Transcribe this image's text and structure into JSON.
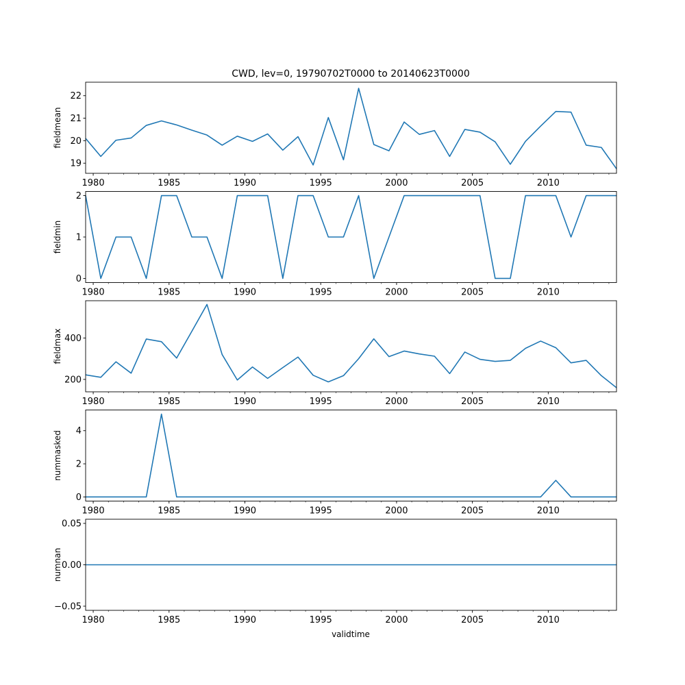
{
  "figure": {
    "title": "CWD, lev=0, 19790702T0000 to 20140623T0000",
    "xlabel": "validtime",
    "line_color": "#1f77b4"
  },
  "chart_data": [
    {
      "type": "line",
      "ylabel": "fieldmean",
      "x": [
        1979.5,
        1980.5,
        1981.5,
        1982.5,
        1983.5,
        1984.5,
        1985.5,
        1986.5,
        1987.5,
        1988.5,
        1989.5,
        1990.5,
        1991.5,
        1992.5,
        1993.5,
        1994.5,
        1995.5,
        1996.5,
        1997.5,
        1998.5,
        1999.5,
        2000.5,
        2001.5,
        2002.5,
        2003.5,
        2004.5,
        2005.5,
        2006.5,
        2007.5,
        2008.5,
        2009.5,
        2010.5,
        2011.5,
        2012.5,
        2013.5,
        2014.5
      ],
      "y": [
        20.1,
        19.3,
        20.02,
        20.12,
        20.68,
        20.88,
        20.7,
        20.47,
        20.25,
        19.8,
        20.2,
        19.97,
        20.3,
        19.58,
        20.18,
        18.92,
        21.03,
        19.15,
        22.33,
        19.83,
        19.55,
        20.83,
        20.28,
        20.45,
        19.3,
        20.5,
        20.38,
        19.95,
        18.95,
        19.97,
        20.65,
        21.3,
        21.27,
        19.8,
        19.7,
        18.75
      ],
      "ylim": [
        18.55,
        22.6
      ],
      "yticks": [
        19,
        20,
        21,
        22
      ],
      "ytick_labels": [
        "19",
        "20",
        "21",
        "22"
      ]
    },
    {
      "type": "line",
      "ylabel": "fieldmin",
      "x": [
        1979.5,
        1980.5,
        1981.5,
        1982.5,
        1983.5,
        1984.5,
        1985.5,
        1986.5,
        1987.5,
        1988.5,
        1989.5,
        1990.5,
        1991.5,
        1992.5,
        1993.5,
        1994.5,
        1995.5,
        1996.5,
        1997.5,
        1998.5,
        1999.5,
        2000.5,
        2001.5,
        2002.5,
        2003.5,
        2004.5,
        2005.5,
        2006.5,
        2007.5,
        2008.5,
        2009.5,
        2010.5,
        2011.5,
        2012.5,
        2013.5,
        2014.5
      ],
      "y": [
        2,
        0,
        1,
        1,
        0,
        2,
        2,
        1,
        1,
        0,
        2,
        2,
        2,
        0,
        2,
        2,
        1,
        1,
        2,
        0,
        1,
        2,
        2,
        2,
        2,
        2,
        2,
        0,
        0,
        2,
        2,
        2,
        1,
        2,
        2,
        2
      ],
      "ylim": [
        -0.1,
        2.1
      ],
      "yticks": [
        0,
        1,
        2
      ],
      "ytick_labels": [
        "0",
        "1",
        "2"
      ]
    },
    {
      "type": "line",
      "ylabel": "fieldmax",
      "x": [
        1979.5,
        1980.5,
        1981.5,
        1982.5,
        1983.5,
        1984.5,
        1985.5,
        1986.5,
        1987.5,
        1988.5,
        1989.5,
        1990.5,
        1991.5,
        1992.5,
        1993.5,
        1994.5,
        1995.5,
        1996.5,
        1997.5,
        1998.5,
        1999.5,
        2000.5,
        2001.5,
        2002.5,
        2003.5,
        2004.5,
        2005.5,
        2006.5,
        2007.5,
        2008.5,
        2009.5,
        2010.5,
        2011.5,
        2012.5,
        2013.5,
        2014.5
      ],
      "y": [
        222,
        210,
        285,
        230,
        395,
        382,
        303,
        432,
        562,
        320,
        197,
        260,
        205,
        257,
        308,
        220,
        188,
        218,
        300,
        396,
        310,
        337,
        323,
        312,
        228,
        332,
        297,
        287,
        292,
        350,
        385,
        353,
        280,
        292,
        218,
        160
      ],
      "ylim": [
        140,
        580
      ],
      "yticks": [
        200,
        400
      ],
      "ytick_labels": [
        "200",
        "400"
      ]
    },
    {
      "type": "line",
      "ylabel": "nummasked",
      "x": [
        1979.5,
        1980.5,
        1981.5,
        1982.5,
        1983.5,
        1984.5,
        1985.5,
        1986.5,
        1987.5,
        1988.5,
        1989.5,
        1990.5,
        1991.5,
        1992.5,
        1993.5,
        1994.5,
        1995.5,
        1996.5,
        1997.5,
        1998.5,
        1999.5,
        2000.5,
        2001.5,
        2002.5,
        2003.5,
        2004.5,
        2005.5,
        2006.5,
        2007.5,
        2008.5,
        2009.5,
        2010.5,
        2011.5,
        2012.5,
        2013.5,
        2014.5
      ],
      "y": [
        0,
        0,
        0,
        0,
        0,
        5,
        0,
        0,
        0,
        0,
        0,
        0,
        0,
        0,
        0,
        0,
        0,
        0,
        0,
        0,
        0,
        0,
        0,
        0,
        0,
        0,
        0,
        0,
        0,
        0,
        0,
        1,
        0,
        0,
        0,
        0
      ],
      "ylim": [
        -0.25,
        5.25
      ],
      "yticks": [
        0,
        2,
        4
      ],
      "ytick_labels": [
        "0",
        "2",
        "4"
      ]
    },
    {
      "type": "line",
      "ylabel": "numnan",
      "x": [
        1979.5,
        1980.5,
        1981.5,
        1982.5,
        1983.5,
        1984.5,
        1985.5,
        1986.5,
        1987.5,
        1988.5,
        1989.5,
        1990.5,
        1991.5,
        1992.5,
        1993.5,
        1994.5,
        1995.5,
        1996.5,
        1997.5,
        1998.5,
        1999.5,
        2000.5,
        2001.5,
        2002.5,
        2003.5,
        2004.5,
        2005.5,
        2006.5,
        2007.5,
        2008.5,
        2009.5,
        2010.5,
        2011.5,
        2012.5,
        2013.5,
        2014.5
      ],
      "y": [
        0,
        0,
        0,
        0,
        0,
        0,
        0,
        0,
        0,
        0,
        0,
        0,
        0,
        0,
        0,
        0,
        0,
        0,
        0,
        0,
        0,
        0,
        0,
        0,
        0,
        0,
        0,
        0,
        0,
        0,
        0,
        0,
        0,
        0,
        0,
        0
      ],
      "ylim": [
        -0.055,
        0.055
      ],
      "yticks": [
        -0.05,
        0.0,
        0.05
      ],
      "ytick_labels": [
        "−0.05",
        "0.00",
        "0.05"
      ]
    }
  ],
  "xaxis": {
    "xlim": [
      1979.5,
      2014.5
    ],
    "major_ticks": [
      1980,
      1985,
      1990,
      1995,
      2000,
      2005,
      2010
    ],
    "major_tick_labels": [
      "1980",
      "1985",
      "1990",
      "1995",
      "2000",
      "2005",
      "2010"
    ]
  }
}
